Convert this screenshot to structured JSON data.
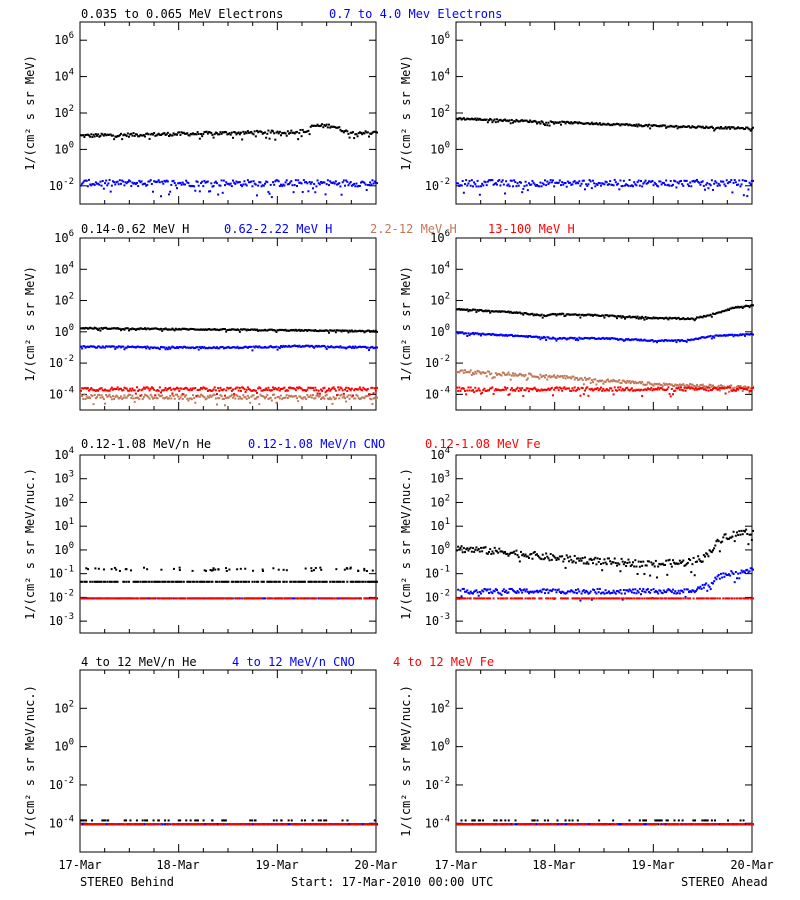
{
  "colors": {
    "black": "#000000",
    "blue": "#0000ff",
    "tan": "#c07858",
    "red": "#ff0000"
  },
  "x_ticks": [
    "17-Mar",
    "18-Mar",
    "19-Mar",
    "20-Mar"
  ],
  "footer": {
    "left": "STEREO Behind",
    "center": "Start: 17-Mar-2010 00:00 UTC",
    "right": "STEREO Ahead"
  },
  "rows": [
    {
      "legend": [
        {
          "text": "0.035 to 0.065 MeV Electrons",
          "color": "#000000"
        },
        {
          "text": "0.7 to 4.0 Mev Electrons",
          "color": "#0000ff"
        }
      ],
      "ylabel": "1/(cm² s sr MeV)"
    },
    {
      "legend": [
        {
          "text": "0.14-0.62 MeV H",
          "color": "#000000"
        },
        {
          "text": "0.62-2.22 MeV H",
          "color": "#0000ff"
        },
        {
          "text": "2.2-12 MeV H",
          "color": "#c07858"
        },
        {
          "text": "13-100 MeV H",
          "color": "#ff0000"
        }
      ],
      "ylabel": "1/(cm² s sr MeV)"
    },
    {
      "legend": [
        {
          "text": "0.12-1.08 MeV/n He",
          "color": "#000000"
        },
        {
          "text": "0.12-1.08 MeV/n CNO",
          "color": "#0000ff"
        },
        {
          "text": "0.12-1.08 MeV Fe",
          "color": "#ff0000"
        }
      ],
      "ylabel": "1/(cm² s sr MeV/nuc.)"
    },
    {
      "legend": [
        {
          "text": "4 to 12 MeV/n He",
          "color": "#000000"
        },
        {
          "text": "4 to 12 MeV/n CNO",
          "color": "#0000ff"
        },
        {
          "text": "4 to 12 MeV Fe",
          "color": "#ff0000"
        }
      ],
      "ylabel": "1/(cm² s sr MeV/nuc.)"
    }
  ],
  "chart_data": [
    {
      "type": "scatter",
      "panel": "STEREO Behind",
      "row": 0,
      "yscale": "log",
      "ylim_exp": [
        -3,
        7
      ],
      "yticks_exp": [
        -2,
        0,
        2,
        4,
        6
      ],
      "xlim": [
        0,
        3
      ],
      "series": [
        {
          "name": "0.035 to 0.065 MeV Electrons",
          "color": "#000000",
          "x": [
            0,
            0.5,
            1.0,
            1.5,
            2.0,
            2.3,
            2.35,
            2.55,
            2.7,
            3.0
          ],
          "log10": [
            0.8,
            0.85,
            0.9,
            0.95,
            1.0,
            1.05,
            1.35,
            1.35,
            1.0,
            0.95
          ],
          "noise": 0.1
        },
        {
          "name": "0.7 to 4.0 Mev Electrons",
          "color": "#0000ff",
          "x": [
            0,
            1.5,
            3.0
          ],
          "log10": [
            -1.8,
            -1.8,
            -1.8
          ],
          "noise": 0.18
        }
      ]
    },
    {
      "type": "scatter",
      "panel": "STEREO Ahead",
      "row": 0,
      "yscale": "log",
      "ylim_exp": [
        -3,
        7
      ],
      "yticks_exp": [
        -2,
        0,
        2,
        4,
        6
      ],
      "xlim": [
        0,
        3
      ],
      "series": [
        {
          "name": "0.035 to 0.065 MeV Electrons",
          "color": "#000000",
          "x": [
            0,
            1.0,
            2.0,
            3.0
          ],
          "log10": [
            1.75,
            1.55,
            1.35,
            1.2
          ],
          "noise": 0.05
        },
        {
          "name": "0.7 to 4.0 Mev Electrons",
          "color": "#0000ff",
          "x": [
            0,
            1.5,
            3.0
          ],
          "log10": [
            -1.8,
            -1.8,
            -1.8
          ],
          "noise": 0.18
        }
      ]
    },
    {
      "type": "scatter",
      "panel": "STEREO Behind",
      "row": 1,
      "yscale": "log",
      "ylim_exp": [
        -5,
        6
      ],
      "yticks_exp": [
        -4,
        -2,
        0,
        2,
        4,
        6
      ],
      "xlim": [
        0,
        3
      ],
      "series": [
        {
          "name": "0.14-0.62 MeV H",
          "color": "#000000",
          "x": [
            0,
            1.5,
            3.0
          ],
          "log10": [
            0.3,
            0.2,
            0.1
          ],
          "noise": 0.04
        },
        {
          "name": "0.62-2.22 MeV H",
          "color": "#0000ff",
          "x": [
            0,
            1.5,
            2.2,
            3.0
          ],
          "log10": [
            -0.9,
            -0.95,
            -0.85,
            -0.95
          ],
          "noise": 0.05
        },
        {
          "name": "2.2-12 MeV H",
          "color": "#c07858",
          "x": [
            0,
            3.0
          ],
          "log10": [
            -4.1,
            -4.1
          ],
          "noise": 0.15
        },
        {
          "name": "13-100 MeV H",
          "color": "#ff0000",
          "x": [
            0,
            3.0
          ],
          "log10": [
            -3.6,
            -3.6
          ],
          "noise": 0.12
        }
      ]
    },
    {
      "type": "scatter",
      "panel": "STEREO Ahead",
      "row": 1,
      "yscale": "log",
      "ylim_exp": [
        -5,
        6
      ],
      "yticks_exp": [
        -4,
        -2,
        0,
        2,
        4,
        6
      ],
      "xlim": [
        0,
        3
      ],
      "series": [
        {
          "name": "0.14-0.62 MeV H",
          "color": "#000000",
          "x": [
            0,
            0.5,
            0.9,
            1.0,
            1.5,
            2.0,
            2.4,
            2.6,
            2.8,
            3.0
          ],
          "log10": [
            1.5,
            1.35,
            1.1,
            1.2,
            1.1,
            0.95,
            0.9,
            1.2,
            1.6,
            1.75
          ],
          "noise": 0.04
        },
        {
          "name": "0.62-2.22 MeV H",
          "color": "#0000ff",
          "x": [
            0,
            0.5,
            1.0,
            1.5,
            2.0,
            2.3,
            2.6,
            3.0
          ],
          "log10": [
            0.0,
            -0.15,
            -0.35,
            -0.35,
            -0.5,
            -0.5,
            -0.2,
            -0.1
          ],
          "noise": 0.04
        },
        {
          "name": "2.2-12 MeV H",
          "color": "#c07858",
          "x": [
            0,
            1.0,
            2.0,
            3.0
          ],
          "log10": [
            -2.45,
            -2.8,
            -3.3,
            -3.5
          ],
          "noise": 0.1
        },
        {
          "name": "13-100 MeV H",
          "color": "#ff0000",
          "x": [
            0,
            3.0
          ],
          "log10": [
            -3.6,
            -3.6
          ],
          "noise": 0.12
        }
      ]
    },
    {
      "type": "scatter",
      "panel": "STEREO Behind",
      "row": 2,
      "yscale": "log",
      "ylim_exp": [
        -3.5,
        4
      ],
      "yticks_exp": [
        -3,
        -2,
        -1,
        0,
        1,
        2,
        3,
        4
      ],
      "xlim": [
        0,
        3
      ],
      "series": [
        {
          "name": "0.12-1.08 MeV/n He",
          "color": "#000000",
          "x": [
            0,
            3.0
          ],
          "log10": [
            -1.3,
            -1.3
          ],
          "noise": 0.0,
          "upper": [
            -0.85,
            -0.7
          ]
        },
        {
          "name": "0.12-1.08 MeV/n CNO",
          "color": "#0000ff",
          "x": [
            0,
            3.0
          ],
          "log10": [
            -2.0,
            -2.0
          ],
          "noise": 0.0
        },
        {
          "name": "0.12-1.08 MeV Fe",
          "color": "#ff0000",
          "x": [
            0,
            3.0
          ],
          "log10": [
            -2.0,
            -2.0
          ],
          "noise": 0.0
        }
      ]
    },
    {
      "type": "scatter",
      "panel": "STEREO Ahead",
      "row": 2,
      "yscale": "log",
      "ylim_exp": [
        -3.5,
        4
      ],
      "yticks_exp": [
        -3,
        -2,
        -1,
        0,
        1,
        2,
        3,
        4
      ],
      "xlim": [
        0,
        3
      ],
      "series": [
        {
          "name": "0.12-1.08 MeV/n He",
          "color": "#000000",
          "x": [
            0,
            0.5,
            1.0,
            1.5,
            2.0,
            2.3,
            2.5,
            2.7,
            3.0
          ],
          "log10": [
            0.1,
            -0.05,
            -0.3,
            -0.45,
            -0.55,
            -0.5,
            -0.3,
            0.6,
            0.85
          ],
          "noise": 0.15
        },
        {
          "name": "0.12-1.08 MeV/n CNO",
          "color": "#0000ff",
          "x": [
            0,
            2.4,
            2.7,
            3.0
          ],
          "log10": [
            -1.7,
            -1.7,
            -1.0,
            -0.8
          ],
          "noise": 0.1
        },
        {
          "name": "0.12-1.08 MeV Fe",
          "color": "#ff0000",
          "x": [
            0,
            3.0
          ],
          "log10": [
            -2.0,
            -2.0
          ],
          "noise": 0.0
        }
      ]
    },
    {
      "type": "scatter",
      "panel": "STEREO Behind",
      "row": 3,
      "yscale": "log",
      "ylim_exp": [
        -5.5,
        4
      ],
      "yticks_exp": [
        -4,
        -2,
        0,
        2
      ],
      "xlim": [
        0,
        3
      ],
      "series": [
        {
          "name": "4 to 12 MeV/n He",
          "color": "#000000",
          "x": [
            0,
            3.0
          ],
          "log10": [
            -4.0,
            -4.0
          ],
          "noise": 0.0,
          "upper": [
            -3.8,
            -3.8
          ]
        },
        {
          "name": "4 to 12 MeV/n CNO",
          "color": "#0000ff",
          "x": [
            0,
            3.0
          ],
          "log10": [
            -4.0,
            -4.0
          ],
          "noise": 0.0
        },
        {
          "name": "4 to 12 MeV Fe",
          "color": "#ff0000",
          "x": [
            0,
            3.0
          ],
          "log10": [
            -4.0,
            -4.0
          ],
          "noise": 0.0
        }
      ]
    },
    {
      "type": "scatter",
      "panel": "STEREO Ahead",
      "row": 3,
      "yscale": "log",
      "ylim_exp": [
        -5.5,
        4
      ],
      "yticks_exp": [
        -4,
        -2,
        0,
        2
      ],
      "xlim": [
        0,
        3
      ],
      "series": [
        {
          "name": "4 to 12 MeV/n He",
          "color": "#000000",
          "x": [
            0,
            3.0
          ],
          "log10": [
            -4.0,
            -4.0
          ],
          "noise": 0.0,
          "upper": [
            -3.8,
            -3.8
          ]
        },
        {
          "name": "4 to 12 MeV/n CNO",
          "color": "#0000ff",
          "x": [
            0,
            3.0
          ],
          "log10": [
            -4.0,
            -4.0
          ],
          "noise": 0.0
        },
        {
          "name": "4 to 12 MeV Fe",
          "color": "#ff0000",
          "x": [
            0,
            3.0
          ],
          "log10": [
            -4.0,
            -4.0
          ],
          "noise": 0.0
        }
      ]
    }
  ]
}
